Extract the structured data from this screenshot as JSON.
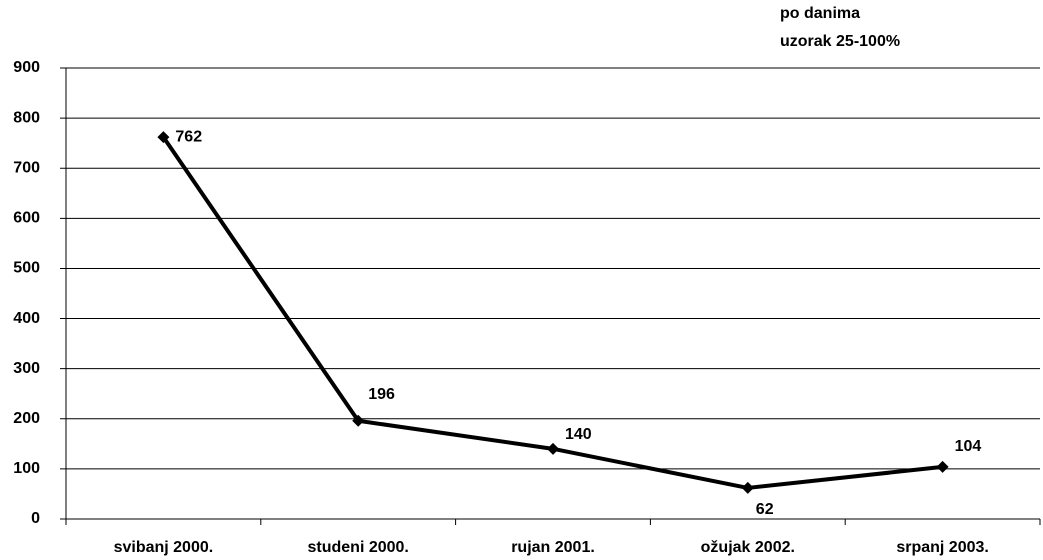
{
  "chart_data": {
    "type": "line",
    "annotations": [
      "po danima",
      "uzorak 25-100%"
    ],
    "categories": [
      "svibanj 2000.",
      "studeni 2000.",
      "rujan 2001.",
      "ožujak 2002.",
      "srpanj 2003."
    ],
    "series": [
      {
        "color": "#000000",
        "values": [
          762,
          196,
          140,
          62,
          104
        ]
      }
    ],
    "ylim": [
      0,
      900
    ],
    "yticks": [
      0,
      100,
      200,
      300,
      400,
      500,
      600,
      700,
      800,
      900
    ],
    "grid": true
  }
}
